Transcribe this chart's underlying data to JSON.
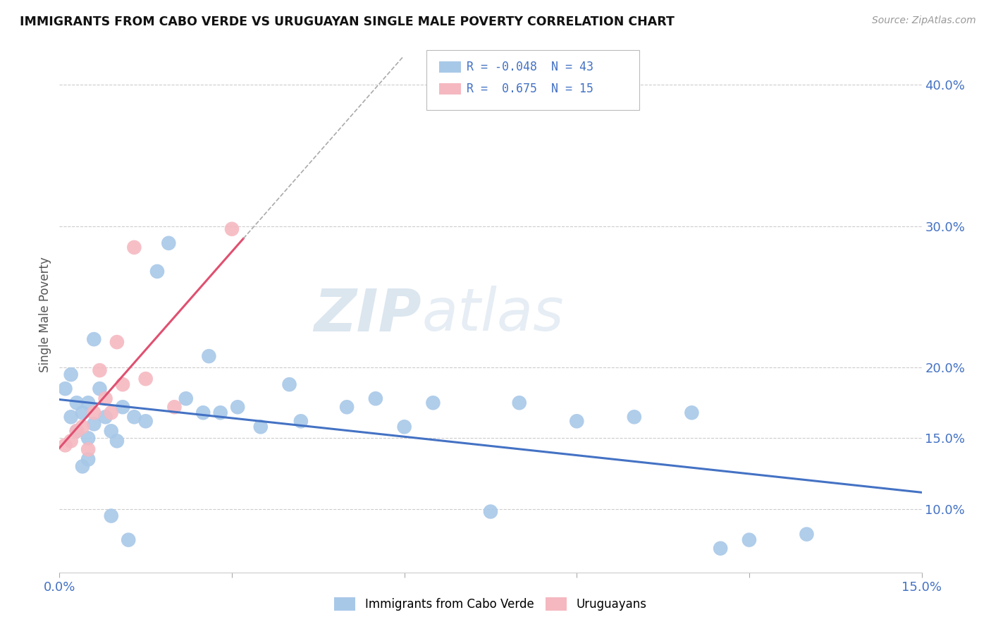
{
  "title": "IMMIGRANTS FROM CABO VERDE VS URUGUAYAN SINGLE MALE POVERTY CORRELATION CHART",
  "source_text": "Source: ZipAtlas.com",
  "ylabel": "Single Male Poverty",
  "xlim": [
    0.0,
    0.15
  ],
  "ylim": [
    0.055,
    0.42
  ],
  "cabo_verde_R": "-0.048",
  "cabo_verde_N": "43",
  "uruguayan_R": "0.675",
  "uruguayan_N": "15",
  "cabo_verde_color": "#a8c8e8",
  "uruguayan_color": "#f5b8c0",
  "cabo_verde_line_color": "#4472c4",
  "uruguayan_line_color": "#e05070",
  "watermark_zip": "ZIP",
  "watermark_atlas": "atlas",
  "cabo_verde_x": [
    0.001,
    0.002,
    0.002,
    0.003,
    0.003,
    0.004,
    0.004,
    0.005,
    0.005,
    0.005,
    0.006,
    0.006,
    0.007,
    0.008,
    0.009,
    0.009,
    0.01,
    0.011,
    0.012,
    0.013,
    0.015,
    0.017,
    0.019,
    0.022,
    0.025,
    0.026,
    0.028,
    0.031,
    0.035,
    0.04,
    0.042,
    0.05,
    0.055,
    0.06,
    0.065,
    0.075,
    0.08,
    0.09,
    0.1,
    0.11,
    0.115,
    0.12,
    0.13
  ],
  "cabo_verde_y": [
    0.185,
    0.165,
    0.195,
    0.175,
    0.155,
    0.168,
    0.13,
    0.175,
    0.15,
    0.135,
    0.22,
    0.16,
    0.185,
    0.165,
    0.095,
    0.155,
    0.148,
    0.172,
    0.078,
    0.165,
    0.162,
    0.268,
    0.288,
    0.178,
    0.168,
    0.208,
    0.168,
    0.172,
    0.158,
    0.188,
    0.162,
    0.172,
    0.178,
    0.158,
    0.175,
    0.098,
    0.175,
    0.162,
    0.165,
    0.168,
    0.072,
    0.078,
    0.082
  ],
  "uruguayan_x": [
    0.001,
    0.002,
    0.003,
    0.004,
    0.005,
    0.006,
    0.007,
    0.008,
    0.009,
    0.01,
    0.011,
    0.013,
    0.015,
    0.02,
    0.03
  ],
  "uruguayan_y": [
    0.145,
    0.148,
    0.155,
    0.158,
    0.142,
    0.168,
    0.198,
    0.178,
    0.168,
    0.218,
    0.188,
    0.285,
    0.192,
    0.172,
    0.298
  ]
}
